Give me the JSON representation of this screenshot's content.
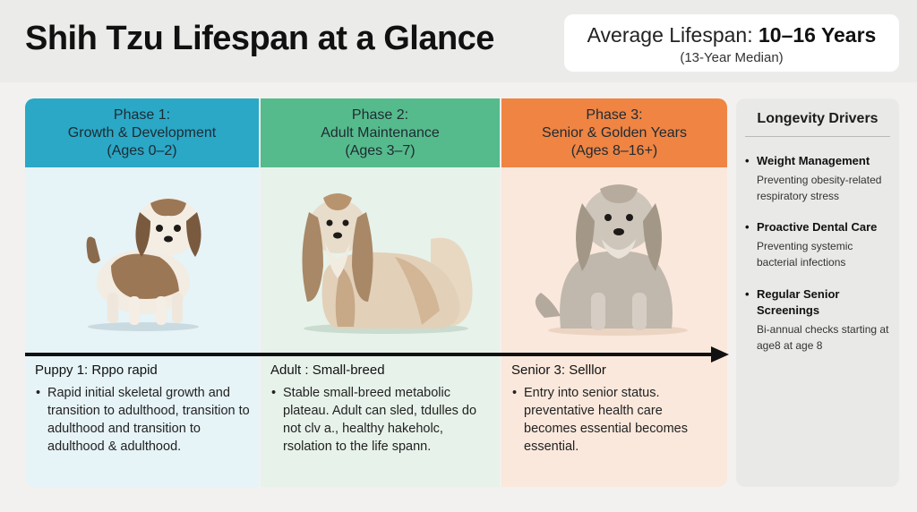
{
  "title": "Shih Tzu Lifespan at a Glance",
  "lifespan": {
    "prefix": "Average Lifespan: ",
    "value": "10–16 Years",
    "median": "(13-Year Median)"
  },
  "phases": [
    {
      "title": "Phase 1:",
      "subtitle": "Growth & Development",
      "ages": "(Ages 0–2)",
      "label": "Puppy 1: Rppo  rapid",
      "description": "Rapid initial skeletal growth and transition to adulthood, transition to adulthood and transition to adulthood & adulthood."
    },
    {
      "title": "Phase 2:",
      "subtitle": "Adult Maintenance",
      "ages": "(Ages 3–7)",
      "label": "Adult :  Small-breed",
      "description": "Stable small-breed metabolic plateau. Adult can sled, tdulles do not clv a., healthy hakeholc, rsolation to the life spann."
    },
    {
      "title": "Phase 3:",
      "subtitle": "Senior & Golden Years",
      "ages": "(Ages 8–16+)",
      "label": "Senior 3: Selllor",
      "description": "Entry into senior status. preventative health care becomes essential becomes essential."
    }
  ],
  "drivers": {
    "title": "Longevity Drivers",
    "items": [
      {
        "name": "Weight Management",
        "description": "Preventing obesity-related respiratory stress"
      },
      {
        "name": "Proactive Dental Care",
        "description": "Preventing systemic bacterial infections"
      },
      {
        "name": "Regular Senior Screenings",
        "description": "Bi-annual checks starting at age8 at age 8"
      }
    ]
  },
  "colors": {
    "phase1": "#2aa8c6",
    "phase2": "#56bb8c",
    "phase3": "#ef8443"
  }
}
